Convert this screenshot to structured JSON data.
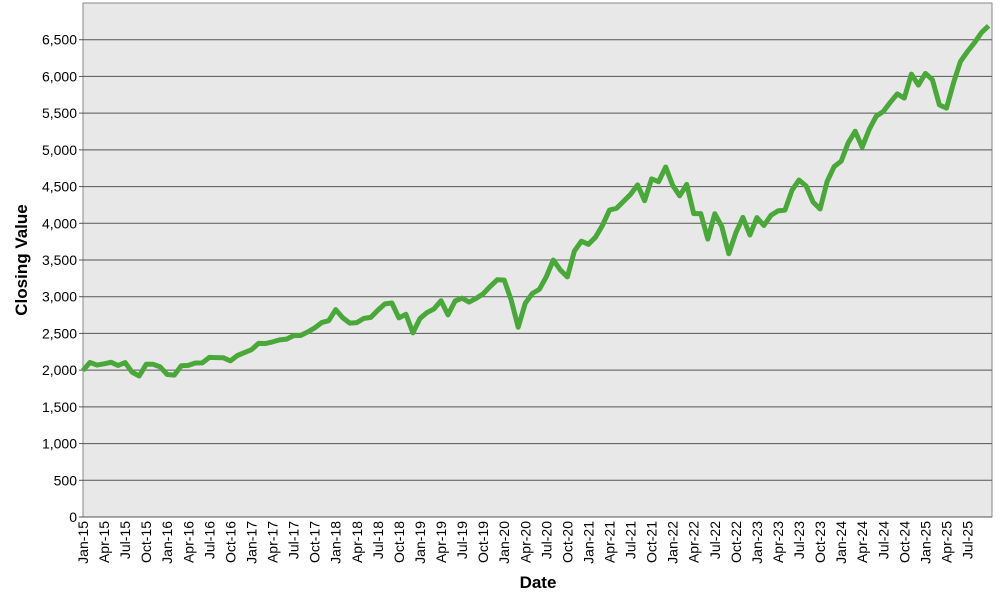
{
  "chart_data": {
    "type": "line",
    "x_label": "Date",
    "y_label": "Closing Value",
    "categories": [
      "Jan-15",
      null,
      null,
      "Apr-15",
      null,
      null,
      "Jul-15",
      null,
      null,
      "Oct-15",
      null,
      null,
      "Jan-16",
      null,
      null,
      "Apr-16",
      null,
      null,
      "Jul-16",
      null,
      null,
      "Oct-16",
      null,
      null,
      "Jan-17",
      null,
      null,
      "Apr-17",
      null,
      null,
      "Jul-17",
      null,
      null,
      "Oct-17",
      null,
      null,
      "Jan-18",
      null,
      null,
      "Apr-18",
      null,
      null,
      "Jul-18",
      null,
      null,
      "Oct-18",
      null,
      null,
      "Jan-19",
      null,
      null,
      "Apr-19",
      null,
      null,
      "Jul-19",
      null,
      null,
      "Oct-19",
      null,
      null,
      "Jan-20",
      null,
      null,
      "Apr-20",
      null,
      null,
      "Jul-20",
      null,
      null,
      "Oct-20",
      null,
      null,
      "Jan-21",
      null,
      null,
      "Apr-21",
      null,
      null,
      "Jul-21",
      null,
      null,
      "Oct-21",
      null,
      null,
      "Jan-22",
      null,
      null,
      "Apr-22",
      null,
      null,
      "Jul-22",
      null,
      null,
      "Oct-22",
      null,
      null,
      "Jan-23",
      null,
      null,
      "Apr-23",
      null,
      null,
      "Jul-23",
      null,
      null,
      "Oct-23",
      null,
      null,
      "Jan-24",
      null,
      null,
      "Apr-24",
      null,
      null,
      "Jul-24",
      null,
      null,
      "Oct-24",
      null,
      null,
      "Jan-25",
      null,
      null,
      "Apr-25",
      null,
      null,
      "Jul-25",
      null,
      null,
      null
    ],
    "values": [
      1995,
      2105,
      2068,
      2086,
      2107,
      2063,
      2104,
      1972,
      1920,
      2079,
      2080,
      2044,
      1940,
      1932,
      2060,
      2065,
      2097,
      2099,
      2174,
      2171,
      2168,
      2126,
      2199,
      2239,
      2279,
      2364,
      2363,
      2384,
      2412,
      2423,
      2470,
      2472,
      2519,
      2575,
      2648,
      2674,
      2824,
      2714,
      2641,
      2648,
      2705,
      2718,
      2816,
      2902,
      2914,
      2712,
      2760,
      2507,
      2704,
      2784,
      2834,
      2946,
      2752,
      2942,
      2980,
      2926,
      2977,
      3038,
      3141,
      3231,
      3226,
      2954,
      2585,
      2912,
      3044,
      3100,
      3271,
      3500,
      3363,
      3270,
      3622,
      3756,
      3714,
      3811,
      3973,
      4181,
      4204,
      4298,
      4395,
      4523,
      4308,
      4605,
      4567,
      4766,
      4516,
      4374,
      4530,
      4132,
      4132,
      3785,
      4130,
      3955,
      3586,
      3872,
      4080,
      3840,
      4077,
      3970,
      4109,
      4169,
      4180,
      4450,
      4589,
      4508,
      4288,
      4194,
      4568,
      4770,
      4846,
      5096,
      5254,
      5036,
      5278,
      5460,
      5522,
      5648,
      5762,
      5705,
      6032,
      5882,
      6041,
      5955,
      5612,
      5569,
      5912,
      6205,
      6339,
      6460,
      6600,
      6690
    ],
    "color": "#4aa83a",
    "ylim": [
      0,
      7000
    ],
    "yticks": [
      0,
      500,
      {
        "value": 1000,
        "label": "1,000"
      },
      {
        "value": 1500,
        "label": "1,500"
      },
      {
        "value": 2000,
        "label": "2,000"
      },
      {
        "value": 2500,
        "label": "2,500"
      },
      {
        "value": 3000,
        "label": "3,000"
      },
      {
        "value": 3500,
        "label": "3,500"
      },
      {
        "value": 4000,
        "label": "4,000"
      },
      {
        "value": 4500,
        "label": "4,500"
      },
      {
        "value": 5000,
        "label": "5,000"
      },
      {
        "value": 5500,
        "label": "5,500"
      },
      {
        "value": 6000,
        "label": "6,000"
      },
      {
        "value": 6500,
        "label": "6,500"
      }
    ],
    "grid": true
  }
}
